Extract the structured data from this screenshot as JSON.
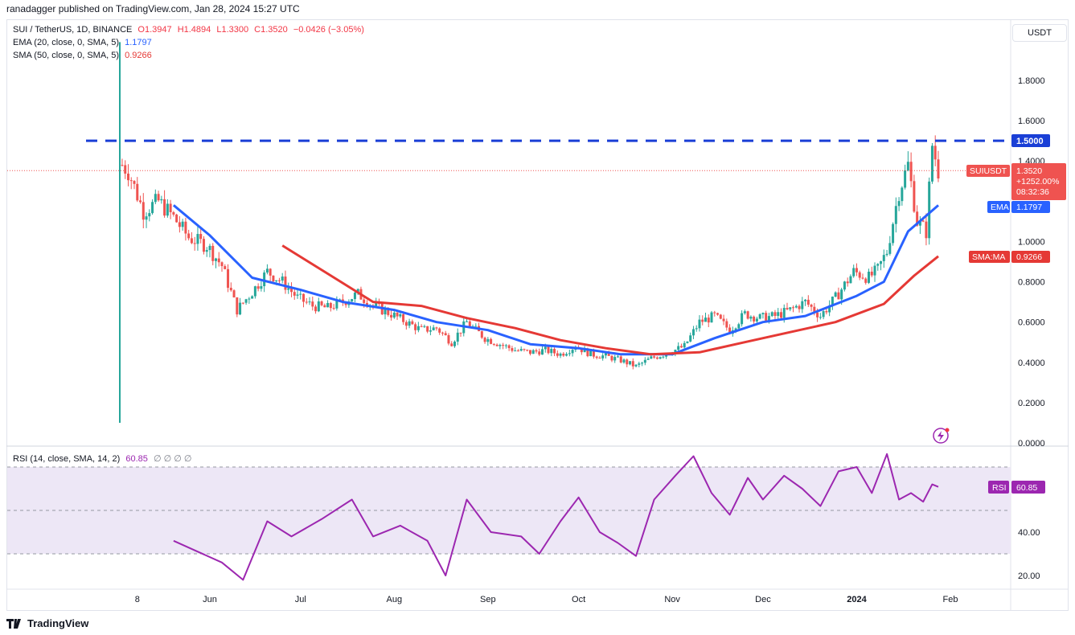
{
  "header": {
    "publisher": "ranadagger published on TradingView.com, Jan 28, 2024 15:27 UTC"
  },
  "legend": {
    "symbol": "SUI / TetherUS, 1D, BINANCE",
    "o": "O1.3947",
    "h": "H1.4894",
    "l": "L1.3300",
    "c": "C1.3520",
    "change": "−0.0426 (−3.05%)",
    "ema_label": "EMA (20, close, 0, SMA, 5)",
    "ema_value": "1.1797",
    "sma_label": "SMA (50, close, 0, SMA, 5)",
    "sma_value": "0.9266",
    "rsi_label": "RSI (14, close, SMA, 14, 2)",
    "rsi_value": "60.85",
    "rsi_extra": "∅ ∅ ∅ ∅"
  },
  "currency": "USDT",
  "footer": {
    "brand": "TradingView"
  },
  "colors": {
    "up": "#26a69a",
    "down": "#ef5350",
    "ema": "#2962ff",
    "sma": "#e53935",
    "rsi": "#9c27b0",
    "resistance": "#1a3fd6",
    "rsi_band": "#ede7f6"
  },
  "price_axis": {
    "ticks": [
      "1.8000",
      "1.6000",
      "1.4000",
      "1.0000",
      "0.8000",
      "0.6000",
      "0.4000",
      "0.2000",
      "0.0000"
    ],
    "tick_values": [
      1.8,
      1.6,
      1.4,
      1.0,
      0.8,
      0.6,
      0.4,
      0.2,
      0.0
    ]
  },
  "time_axis": {
    "labels": [
      "8",
      "Jun",
      "Jul",
      "Aug",
      "Sep",
      "Oct",
      "Nov",
      "Dec",
      "2024",
      "Feb"
    ]
  },
  "price_badges": {
    "resistance": "1.5000",
    "symbol_name": "SUIUSDT",
    "last": "1.3520",
    "pct": "+1252.00%",
    "countdown": "08:32:36",
    "ema_name": "EMA",
    "ema": "1.1797",
    "sma_name": "SMA:MA",
    "sma": "0.9266"
  },
  "rsi_axis": {
    "ticks": [
      "40.00",
      "20.00"
    ],
    "tick_values": [
      40,
      20
    ],
    "badge_name": "RSI",
    "badge_value": "60.85"
  },
  "chart_data": [
    {
      "type": "candlestick",
      "title": "SUI / TetherUS, 1D, BINANCE",
      "ylim": [
        0,
        2.0
      ],
      "x_range": [
        "2023-05-03",
        "2024-02-05"
      ],
      "resistance_level": 1.5,
      "last_close": 1.352,
      "series": [
        {
          "name": "SUIUSDT close",
          "x": [
            "2023-05-03",
            "2023-05-05",
            "2023-05-10",
            "2023-05-15",
            "2023-05-20",
            "2023-05-25",
            "2023-05-31",
            "2023-06-05",
            "2023-06-10",
            "2023-06-15",
            "2023-06-20",
            "2023-06-25",
            "2023-06-30",
            "2023-07-05",
            "2023-07-10",
            "2023-07-15",
            "2023-07-20",
            "2023-07-25",
            "2023-07-31",
            "2023-08-05",
            "2023-08-10",
            "2023-08-15",
            "2023-08-20",
            "2023-08-25",
            "2023-08-31",
            "2023-09-05",
            "2023-09-10",
            "2023-09-15",
            "2023-09-20",
            "2023-09-25",
            "2023-09-30",
            "2023-10-05",
            "2023-10-10",
            "2023-10-15",
            "2023-10-20",
            "2023-10-25",
            "2023-10-31",
            "2023-11-05",
            "2023-11-10",
            "2023-11-15",
            "2023-11-20",
            "2023-11-25",
            "2023-11-30",
            "2023-12-05",
            "2023-12-10",
            "2023-12-15",
            "2023-12-20",
            "2023-12-25",
            "2023-12-31",
            "2024-01-05",
            "2024-01-08",
            "2024-01-11",
            "2024-01-15",
            "2024-01-18",
            "2024-01-21",
            "2024-01-24",
            "2024-01-26",
            "2024-01-28"
          ],
          "values": [
            1.38,
            1.35,
            1.15,
            1.2,
            1.12,
            1.02,
            0.98,
            0.88,
            0.66,
            0.75,
            0.85,
            0.8,
            0.72,
            0.68,
            0.67,
            0.7,
            0.74,
            0.68,
            0.64,
            0.6,
            0.56,
            0.57,
            0.5,
            0.6,
            0.52,
            0.49,
            0.46,
            0.45,
            0.46,
            0.44,
            0.48,
            0.44,
            0.43,
            0.41,
            0.38,
            0.42,
            0.45,
            0.48,
            0.6,
            0.63,
            0.56,
            0.64,
            0.62,
            0.63,
            0.66,
            0.7,
            0.63,
            0.72,
            0.85,
            0.82,
            0.86,
            0.95,
            1.25,
            1.38,
            1.1,
            1.05,
            1.48,
            1.352
          ]
        },
        {
          "name": "EMA (20)",
          "x": [
            "2023-05-20",
            "2023-06-01",
            "2023-06-15",
            "2023-07-01",
            "2023-07-15",
            "2023-08-01",
            "2023-08-15",
            "2023-09-01",
            "2023-09-15",
            "2023-10-01",
            "2023-10-15",
            "2023-11-01",
            "2023-11-15",
            "2023-12-01",
            "2023-12-15",
            "2024-01-01",
            "2024-01-10",
            "2024-01-18",
            "2024-01-28"
          ],
          "values": [
            1.18,
            1.03,
            0.82,
            0.76,
            0.7,
            0.66,
            0.6,
            0.56,
            0.49,
            0.47,
            0.44,
            0.44,
            0.52,
            0.6,
            0.63,
            0.73,
            0.8,
            1.05,
            1.1797
          ]
        },
        {
          "name": "SMA (50)",
          "x": [
            "2023-06-25",
            "2023-07-10",
            "2023-07-25",
            "2023-08-10",
            "2023-08-25",
            "2023-09-10",
            "2023-09-25",
            "2023-10-10",
            "2023-10-25",
            "2023-11-10",
            "2023-11-25",
            "2023-12-10",
            "2023-12-25",
            "2024-01-10",
            "2024-01-20",
            "2024-01-28"
          ],
          "values": [
            0.98,
            0.84,
            0.7,
            0.68,
            0.62,
            0.57,
            0.51,
            0.47,
            0.44,
            0.45,
            0.5,
            0.55,
            0.6,
            0.69,
            0.83,
            0.9266
          ]
        }
      ]
    },
    {
      "type": "line",
      "title": "RSI (14, close, SMA, 14, 2)",
      "ylim": [
        10,
        80
      ],
      "bands": [
        30,
        50,
        70
      ],
      "series": [
        {
          "name": "RSI",
          "x": [
            "2023-05-20",
            "2023-05-28",
            "2023-06-05",
            "2023-06-12",
            "2023-06-20",
            "2023-06-28",
            "2023-07-08",
            "2023-07-18",
            "2023-07-25",
            "2023-08-03",
            "2023-08-12",
            "2023-08-18",
            "2023-08-25",
            "2023-09-02",
            "2023-09-12",
            "2023-09-18",
            "2023-09-25",
            "2023-10-01",
            "2023-10-08",
            "2023-10-14",
            "2023-10-20",
            "2023-10-26",
            "2023-11-02",
            "2023-11-08",
            "2023-11-14",
            "2023-11-20",
            "2023-11-26",
            "2023-12-01",
            "2023-12-08",
            "2023-12-14",
            "2023-12-20",
            "2023-12-26",
            "2024-01-01",
            "2024-01-06",
            "2024-01-11",
            "2024-01-15",
            "2024-01-19",
            "2024-01-23",
            "2024-01-26",
            "2024-01-28"
          ],
          "values": [
            36,
            31,
            26,
            18,
            45,
            38,
            46,
            55,
            38,
            43,
            36,
            20,
            55,
            40,
            38,
            30,
            45,
            56,
            40,
            35,
            29,
            55,
            66,
            75,
            58,
            48,
            65,
            55,
            66,
            60,
            52,
            68,
            70,
            58,
            76,
            55,
            58,
            54,
            62,
            60.85
          ]
        }
      ]
    }
  ]
}
